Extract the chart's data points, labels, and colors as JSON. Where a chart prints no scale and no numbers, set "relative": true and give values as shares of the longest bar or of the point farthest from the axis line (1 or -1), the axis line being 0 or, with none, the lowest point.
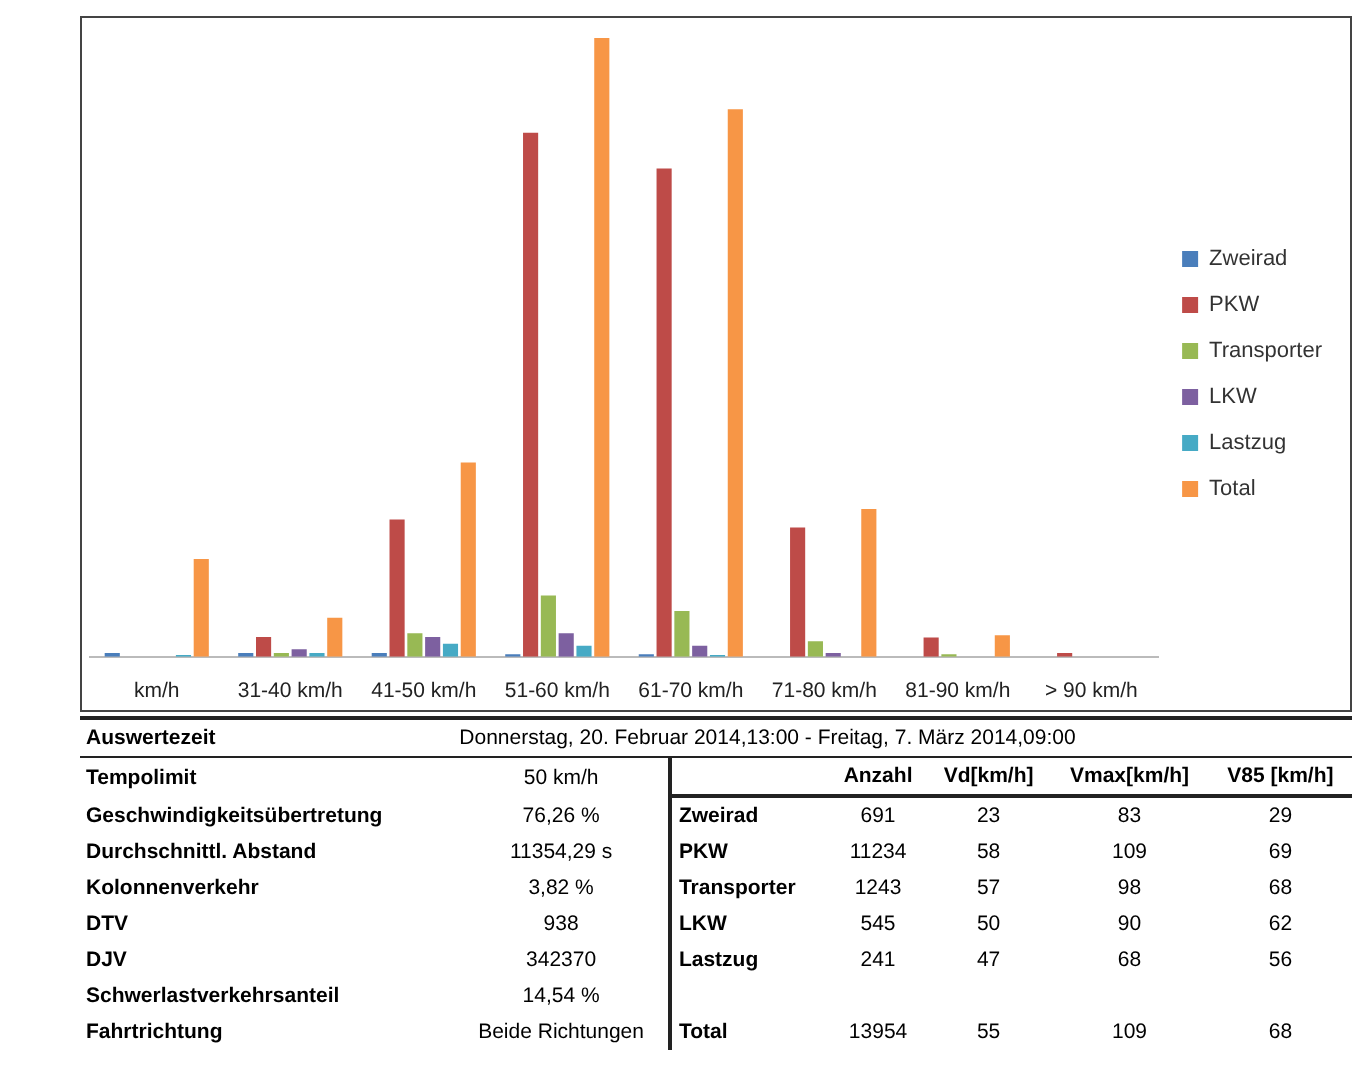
{
  "chart_data": {
    "type": "bar",
    "relative": true,
    "legend": "right",
    "categories": [
      "km/h",
      "31-40 km/h",
      "41-50 km/h",
      "51-60 km/h",
      "61-70 km/h",
      "71-80 km/h",
      "81-90 km/h",
      "> 90 km/h"
    ],
    "series": [
      {
        "name": "Zweirad",
        "color": "#4a7ebb",
        "values": [
          0.006,
          0.006,
          0.006,
          0.004,
          0.004,
          0,
          0,
          0
        ]
      },
      {
        "name": "PKW",
        "color": "#be4b48",
        "values": [
          0,
          0.032,
          0.222,
          0.847,
          0.789,
          0.209,
          0.031,
          0.006
        ]
      },
      {
        "name": "Transporter",
        "color": "#98b954",
        "values": [
          0,
          0.006,
          0.038,
          0.099,
          0.074,
          0.025,
          0.004,
          0
        ]
      },
      {
        "name": "LKW",
        "color": "#7d60a0",
        "values": [
          0,
          0.012,
          0.032,
          0.038,
          0.018,
          0.006,
          0,
          0
        ]
      },
      {
        "name": "Lastzug",
        "color": "#46aac5",
        "values": [
          0.003,
          0.006,
          0.021,
          0.018,
          0.003,
          0,
          0,
          0
        ]
      },
      {
        "name": "Total",
        "color": "#f79646",
        "values": [
          0.158,
          0.063,
          0.314,
          1,
          0.885,
          0.239,
          0.035,
          null
        ]
      }
    ],
    "annotations": [
      "Auswertezeit",
      "Donnerstag, 20. Februar 2014,13:00  -  Freitag, 7. März 2014,09:00",
      "Tempolimit",
      "50 km/h",
      "Geschwindigkeitsübertretung",
      "76,26 %",
      "Durchschnittl. Abstand",
      "11354,29 s",
      "Kolonnenverkehr",
      "3,82 %",
      "DTV",
      "938",
      "DJV",
      "342370",
      "Schwerlastverkehrsanteil",
      "14,54 %",
      "Fahrtrichtung",
      "Beide Richtungen",
      "Anzahl",
      "Vd[km/h]",
      "Vmax[km/h]",
      "V85 [km/h]",
      "Zweirad",
      "691",
      "23",
      "83",
      "29",
      "PKW",
      "11234",
      "58",
      "109",
      "69",
      "Transporter",
      "1243",
      "57",
      "98",
      "68",
      "LKW",
      "545",
      "50",
      "90",
      "62",
      "Lastzug",
      "241",
      "47",
      "68",
      "56",
      "Total",
      "13954",
      "55",
      "109",
      "68"
    ]
  }
}
